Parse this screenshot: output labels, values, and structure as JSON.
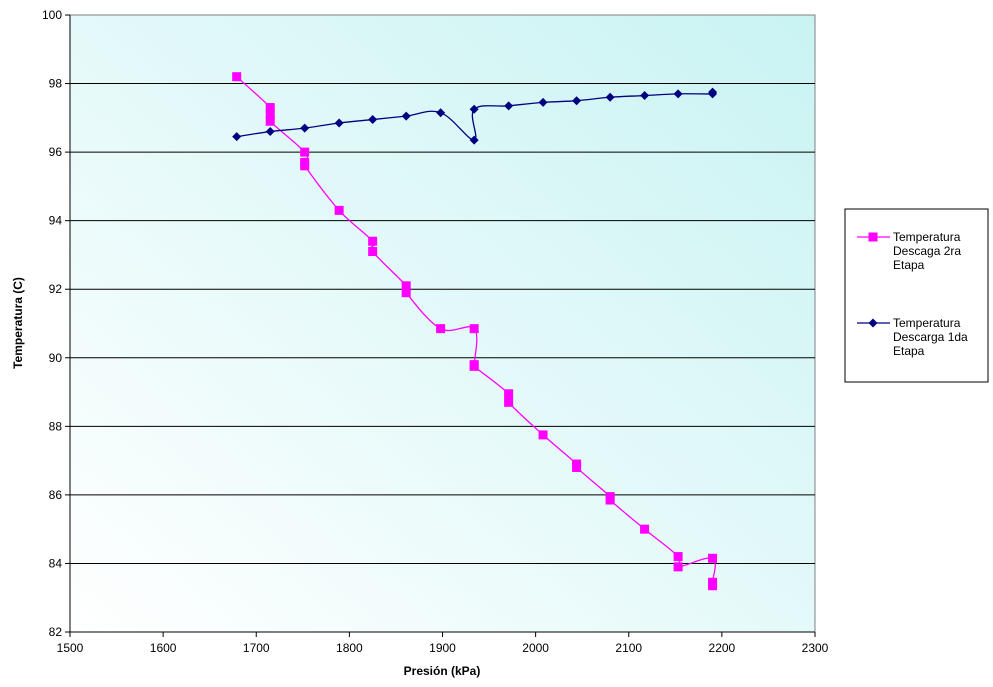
{
  "chart_data": {
    "type": "scatter",
    "title": "",
    "xlabel": "Presión (kPa)",
    "ylabel": "Temperatura (C)",
    "xlim": [
      1500,
      2300
    ],
    "ylim": [
      82,
      100
    ],
    "x_ticks": [
      1500,
      1600,
      1700,
      1800,
      1900,
      2000,
      2100,
      2200,
      2300
    ],
    "y_ticks": [
      82,
      84,
      86,
      88,
      90,
      92,
      94,
      96,
      98,
      100
    ],
    "grid": "horizontal",
    "legend_position": "right",
    "series": [
      {
        "name": "Temperatura Descaga 2ra Etapa",
        "legend_lines": [
          "Temperatura",
          "Descaga 2ra",
          "Etapa"
        ],
        "color": "#ff00ff",
        "marker": "square",
        "x": [
          1679,
          1715,
          1715,
          1715,
          1752,
          1752,
          1752,
          1789,
          1825,
          1825,
          1861,
          1861,
          1898,
          1934,
          1934,
          1934,
          1971,
          1971,
          2008,
          2044,
          2044,
          2080,
          2080,
          2117,
          2153,
          2153,
          2190,
          2190,
          2190
        ],
        "y": [
          98.2,
          97.3,
          97.1,
          96.9,
          96.0,
          95.7,
          95.6,
          94.3,
          93.4,
          93.1,
          92.1,
          91.9,
          90.85,
          90.85,
          89.8,
          89.75,
          88.95,
          88.7,
          87.75,
          86.9,
          86.8,
          85.95,
          85.85,
          85.0,
          84.2,
          83.9,
          84.15,
          83.45,
          83.35
        ]
      },
      {
        "name": "Temperatura Descarga 1da Etapa",
        "legend_lines": [
          "Temperatura",
          "Descarga 1da",
          "Etapa"
        ],
        "color": "#000080",
        "marker": "diamond",
        "x": [
          1679,
          1715,
          1752,
          1789,
          1825,
          1861,
          1898,
          1934,
          1934,
          1971,
          2008,
          2044,
          2080,
          2117,
          2153,
          2190,
          2190
        ],
        "y": [
          96.45,
          96.6,
          96.7,
          96.85,
          96.95,
          97.05,
          97.15,
          96.35,
          97.25,
          97.35,
          97.45,
          97.5,
          97.6,
          97.65,
          97.7,
          97.7,
          97.75
        ]
      }
    ]
  }
}
